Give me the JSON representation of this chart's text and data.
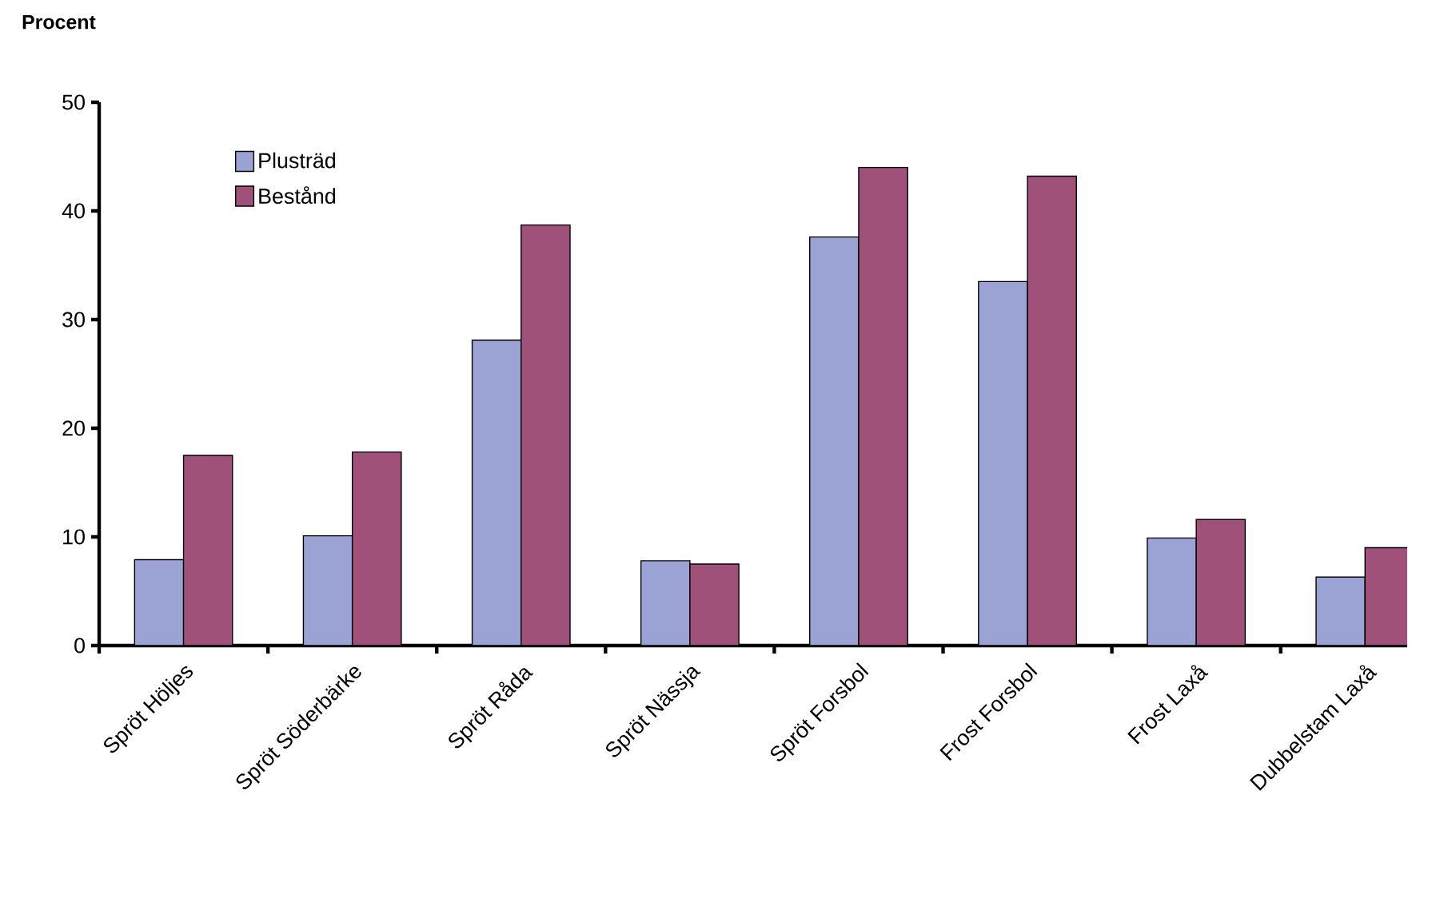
{
  "chart_data": {
    "type": "bar",
    "ylabel": "Procent",
    "categories": [
      "Spröt Höljes",
      "Spröt Söderbärke",
      "Spröt Råda",
      "Spröt Nässja",
      "Spröt Forsbol",
      "Frost Forsbol",
      "Frost Laxå",
      "Dubbelstam Laxå"
    ],
    "series": [
      {
        "name": "Plusträd",
        "color": "#9aa3d4",
        "values": [
          7.9,
          10.1,
          28.1,
          7.8,
          37.6,
          33.5,
          9.9,
          6.3
        ]
      },
      {
        "name": "Bestånd",
        "color": "#a0517a",
        "values": [
          17.5,
          17.8,
          38.7,
          7.5,
          44.0,
          43.2,
          11.6,
          9.0
        ]
      }
    ],
    "ylim": [
      0,
      50
    ],
    "yticks": [
      0,
      10,
      20,
      30,
      40,
      50
    ],
    "grid": false,
    "legend": "top left"
  }
}
